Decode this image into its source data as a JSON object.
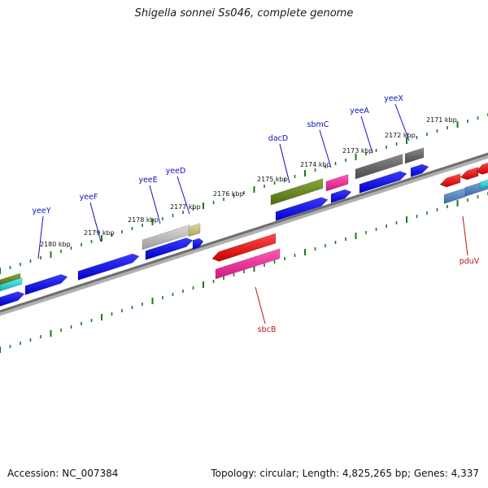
{
  "title": "Shigella sonnei Ss046, complete genome",
  "footer": {
    "accession": "Accession: NC_007384",
    "summary": "Topology: circular; Length: 4,825,265 bp; Genes: 4,337"
  },
  "colors": {
    "forward_label": "#1010c0",
    "reverse_label": "#c01010",
    "tick": "#1a7a1a",
    "backbone": "#7a7a7a"
  },
  "tick_labels": [
    "2180 kbp",
    "2179 kbp",
    "2178 kbp",
    "2177 kbp",
    "2176 kbp",
    "2175 kbp",
    "2174 kbp",
    "2173 kbp",
    "2172 kbp",
    "2171 kbp"
  ],
  "forward_genes": [
    "yeeY",
    "yeeF",
    "yeeE",
    "yeeD",
    "dacD",
    "sbmC",
    "yeeA",
    "yeeX"
  ],
  "reverse_genes": [
    "sbcB",
    "pduV"
  ]
}
